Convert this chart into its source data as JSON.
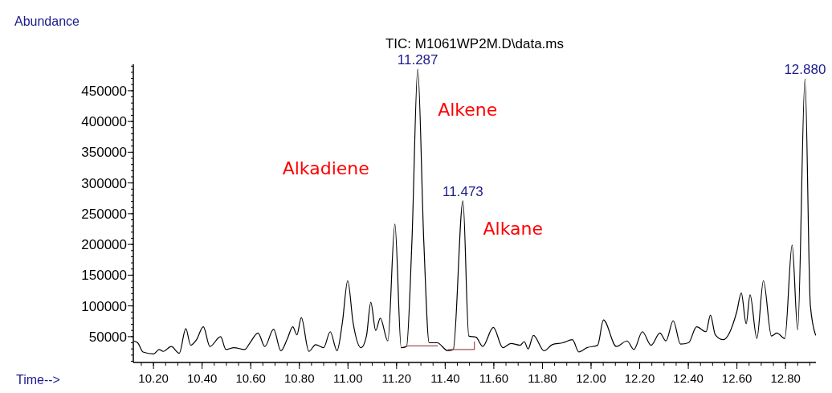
{
  "chart_data": {
    "type": "line",
    "title": "TIC: M1061WP2M.D\\data.ms",
    "xlabel": "Time-->",
    "ylabel": "Abundance",
    "xlim": [
      10.117,
      12.925
    ],
    "ylim": [
      8000,
      493000
    ],
    "xticks": [
      {
        "value": 10.2,
        "label": "10.20"
      },
      {
        "value": 10.4,
        "label": "10.40"
      },
      {
        "value": 10.6,
        "label": "10.60"
      },
      {
        "value": 10.8,
        "label": "10.80"
      },
      {
        "value": 11.0,
        "label": "11.00"
      },
      {
        "value": 11.2,
        "label": "11.20"
      },
      {
        "value": 11.4,
        "label": "11.40"
      },
      {
        "value": 11.6,
        "label": "11.60"
      },
      {
        "value": 11.8,
        "label": "11.80"
      },
      {
        "value": 12.0,
        "label": "12.00"
      },
      {
        "value": 12.2,
        "label": "12.20"
      },
      {
        "value": 12.4,
        "label": "12.40"
      },
      {
        "value": 12.6,
        "label": "12.60"
      },
      {
        "value": 12.8,
        "label": "12.80"
      }
    ],
    "yticks": [
      50000,
      100000,
      150000,
      200000,
      250000,
      300000,
      350000,
      400000,
      450000
    ],
    "grid": false,
    "marker": "none",
    "line_style": "solid",
    "series": [
      {
        "color": "#000000",
        "x": [
          10.119,
          10.135,
          10.157,
          10.201,
          10.223,
          10.24,
          10.273,
          10.306,
          10.333,
          10.353,
          10.377,
          10.405,
          10.432,
          10.476,
          10.498,
          10.531,
          10.575,
          10.597,
          10.63,
          10.658,
          10.694,
          10.724,
          10.751,
          10.773,
          10.79,
          10.808,
          10.839,
          10.867,
          10.9,
          10.927,
          10.955,
          10.977,
          10.999,
          11.021,
          11.054,
          11.076,
          11.094,
          11.114,
          11.133,
          11.164,
          11.193,
          11.219,
          11.241,
          11.263,
          11.287,
          11.312,
          11.334,
          11.367,
          11.411,
          11.433,
          11.473,
          11.497,
          11.527,
          11.554,
          11.598,
          11.637,
          11.67,
          11.708,
          11.725,
          11.741,
          11.763,
          11.807,
          11.84,
          11.884,
          11.923,
          11.95,
          11.983,
          12.027,
          12.051,
          12.104,
          12.148,
          12.176,
          12.211,
          12.247,
          12.283,
          12.308,
          12.338,
          12.368,
          12.401,
          12.434,
          12.473,
          12.491,
          12.511,
          12.544,
          12.599,
          12.618,
          12.638,
          12.654,
          12.682,
          12.709,
          12.742,
          12.764,
          12.797,
          12.827,
          12.85,
          12.88,
          12.902,
          12.924
        ],
        "values": [
          43000,
          40000,
          25000,
          22000,
          29000,
          26000,
          34000,
          23000,
          63000,
          36000,
          45000,
          66000,
          34000,
          50000,
          29000,
          32000,
          29000,
          40000,
          56000,
          34000,
          62000,
          27000,
          47000,
          66000,
          53000,
          81000,
          26000,
          37000,
          32000,
          58000,
          27000,
          73000,
          141000,
          73000,
          32000,
          51000,
          106000,
          60000,
          80000,
          43000,
          233000,
          32000,
          34000,
          204000,
          485000,
          204000,
          40000,
          40000,
          27000,
          29000,
          271000,
          51000,
          49000,
          34000,
          65000,
          32000,
          39000,
          36000,
          42000,
          30000,
          52000,
          27000,
          37000,
          40000,
          45000,
          25000,
          32000,
          36000,
          77000,
          34000,
          43000,
          29000,
          58000,
          36000,
          56000,
          43000,
          76000,
          38000,
          40000,
          66000,
          58000,
          85000,
          53000,
          45000,
          90000,
          121000,
          71000,
          118000,
          47000,
          141000,
          51000,
          56000,
          47000,
          199000,
          61000,
          469000,
          101000,
          52000
        ]
      },
      {
        "color": "#a05050",
        "x": [
          11.24,
          11.37,
          11.39,
          11.41,
          11.52,
          11.52
        ],
        "values": [
          35000,
          35000,
          null,
          29000,
          29000,
          42000
        ]
      }
    ],
    "annotations": [
      {
        "text": "11.287",
        "x": 11.287,
        "y": 485000
      },
      {
        "text": "11.473",
        "x": 11.473,
        "y": 271000
      },
      {
        "text": "12.880",
        "x": 12.88,
        "y": 469000
      },
      {
        "text": "Alkene",
        "x": 11.287,
        "y": 485000
      },
      {
        "text": "Alkadiene",
        "x": 11.193,
        "y": 233000
      },
      {
        "text": "Alkane",
        "x": 11.473,
        "y": 271000
      }
    ]
  }
}
